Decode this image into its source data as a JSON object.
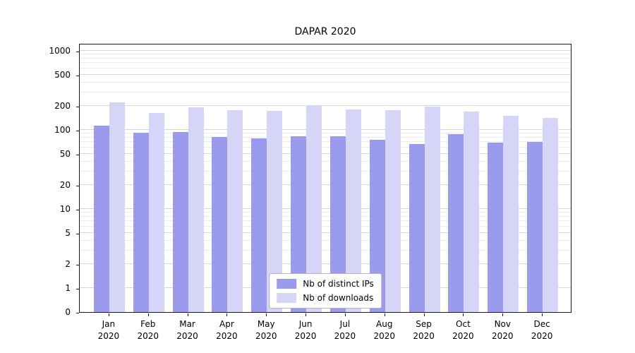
{
  "chart_data": {
    "type": "bar",
    "title": "DAPAR 2020",
    "scale": "symlog",
    "grid": "on",
    "legend_position": "lower center",
    "categories": [
      "Jan 2020",
      "Feb 2020",
      "Mar 2020",
      "Apr 2020",
      "May 2020",
      "Jun 2020",
      "Jul 2020",
      "Aug 2020",
      "Sep 2020",
      "Oct 2020",
      "Nov 2020",
      "Dec 2020"
    ],
    "series": [
      {
        "name": "Nb of distinct IPs",
        "color": "#9b9bee",
        "values": [
          113,
          92,
          95,
          82,
          78,
          83,
          83,
          75,
          66,
          88,
          69,
          70
        ]
      },
      {
        "name": "Nb of downloads",
        "color": "#d5d5f8",
        "values": [
          225,
          165,
          192,
          177,
          174,
          205,
          182,
          177,
          199,
          170,
          150,
          141
        ]
      }
    ],
    "yticks": [
      0,
      1,
      2,
      5,
      10,
      20,
      50,
      100,
      200,
      500,
      1000
    ],
    "minor_gridlines": [
      3,
      4,
      6,
      7,
      8,
      9,
      30,
      40,
      60,
      70,
      80,
      90,
      300,
      400,
      600,
      700,
      800,
      900
    ],
    "ylim": [
      0,
      1000
    ]
  }
}
